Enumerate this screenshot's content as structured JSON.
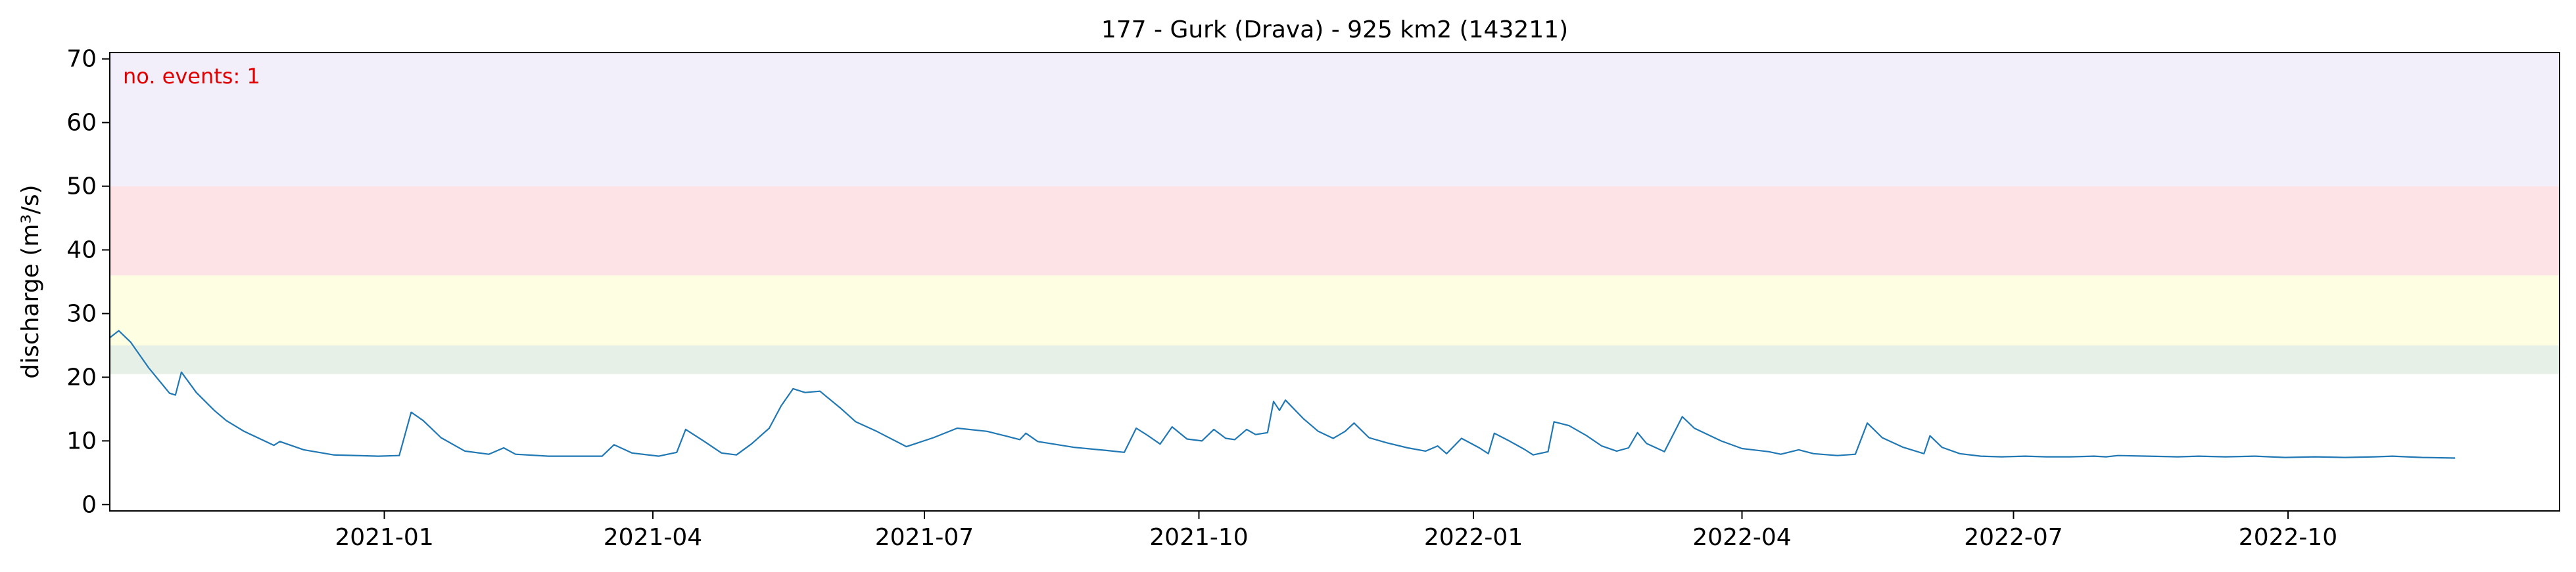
{
  "chart_data": {
    "type": "line",
    "title": "177 - Gurk (Drava) - 925 km2 (143211)",
    "xlabel": "",
    "ylabel": "discharge (m³/s)",
    "xlim": [
      "2020-10-01",
      "2022-12-31"
    ],
    "ylim": [
      -1,
      71
    ],
    "y_ticks": [
      0,
      10,
      20,
      30,
      40,
      50,
      60,
      70
    ],
    "x_ticks": [
      "2021-01",
      "2021-04",
      "2021-07",
      "2021-10",
      "2022-01",
      "2022-04",
      "2022-07",
      "2022-10"
    ],
    "grid": false,
    "bands": [
      {
        "from": 20.5,
        "to": 25,
        "color": "#e6f0e6"
      },
      {
        "from": 25,
        "to": 36,
        "color": "#feffe2"
      },
      {
        "from": 36,
        "to": 50,
        "color": "#fee3e6"
      },
      {
        "from": 50,
        "to": 71,
        "color": "#f2eefa"
      }
    ],
    "series": [
      {
        "color": "#1f77b4",
        "points": [
          [
            "2020-10-01",
            26.2
          ],
          [
            "2020-10-04",
            27.3
          ],
          [
            "2020-10-08",
            25.5
          ],
          [
            "2020-10-14",
            21.5
          ],
          [
            "2020-10-21",
            17.5
          ],
          [
            "2020-10-23",
            17.2
          ],
          [
            "2020-10-25",
            20.8
          ],
          [
            "2020-10-30",
            17.6
          ],
          [
            "2020-11-05",
            14.8
          ],
          [
            "2020-11-09",
            13.2
          ],
          [
            "2020-11-15",
            11.5
          ],
          [
            "2020-11-25",
            9.3
          ],
          [
            "2020-11-27",
            9.9
          ],
          [
            "2020-12-05",
            8.6
          ],
          [
            "2020-12-15",
            7.8
          ],
          [
            "2020-12-30",
            7.6
          ],
          [
            "2021-01-06",
            7.7
          ],
          [
            "2021-01-10",
            14.5
          ],
          [
            "2021-01-14",
            13.2
          ],
          [
            "2021-01-20",
            10.5
          ],
          [
            "2021-01-28",
            8.4
          ],
          [
            "2021-02-05",
            7.9
          ],
          [
            "2021-02-10",
            8.9
          ],
          [
            "2021-02-14",
            7.9
          ],
          [
            "2021-02-25",
            7.6
          ],
          [
            "2021-03-15",
            7.6
          ],
          [
            "2021-03-19",
            9.4
          ],
          [
            "2021-03-25",
            8.1
          ],
          [
            "2021-04-03",
            7.6
          ],
          [
            "2021-04-09",
            8.2
          ],
          [
            "2021-04-12",
            11.8
          ],
          [
            "2021-04-18",
            10.0
          ],
          [
            "2021-04-24",
            8.1
          ],
          [
            "2021-04-29",
            7.8
          ],
          [
            "2021-05-04",
            9.5
          ],
          [
            "2021-05-10",
            12.0
          ],
          [
            "2021-05-14",
            15.5
          ],
          [
            "2021-05-18",
            18.2
          ],
          [
            "2021-05-22",
            17.6
          ],
          [
            "2021-05-27",
            17.8
          ],
          [
            "2021-06-03",
            15.1
          ],
          [
            "2021-06-08",
            13.0
          ],
          [
            "2021-06-15",
            11.5
          ],
          [
            "2021-06-25",
            9.1
          ],
          [
            "2021-07-04",
            10.5
          ],
          [
            "2021-07-12",
            12.0
          ],
          [
            "2021-07-22",
            11.5
          ],
          [
            "2021-07-28",
            10.8
          ],
          [
            "2021-08-02",
            10.2
          ],
          [
            "2021-08-04",
            11.2
          ],
          [
            "2021-08-08",
            9.9
          ],
          [
            "2021-08-20",
            9.0
          ],
          [
            "2021-08-31",
            8.5
          ],
          [
            "2021-09-06",
            8.2
          ],
          [
            "2021-09-10",
            12.0
          ],
          [
            "2021-09-14",
            10.8
          ],
          [
            "2021-09-18",
            9.5
          ],
          [
            "2021-09-22",
            12.2
          ],
          [
            "2021-09-27",
            10.3
          ],
          [
            "2021-10-02",
            10.0
          ],
          [
            "2021-10-06",
            11.8
          ],
          [
            "2021-10-10",
            10.4
          ],
          [
            "2021-10-13",
            10.2
          ],
          [
            "2021-10-17",
            11.8
          ],
          [
            "2021-10-20",
            11.0
          ],
          [
            "2021-10-24",
            11.3
          ],
          [
            "2021-10-26",
            16.2
          ],
          [
            "2021-10-28",
            14.8
          ],
          [
            "2021-10-30",
            16.4
          ],
          [
            "2021-11-05",
            13.5
          ],
          [
            "2021-11-10",
            11.5
          ],
          [
            "2021-11-15",
            10.4
          ],
          [
            "2021-11-19",
            11.5
          ],
          [
            "2021-11-22",
            12.8
          ],
          [
            "2021-11-27",
            10.5
          ],
          [
            "2021-12-03",
            9.7
          ],
          [
            "2021-12-10",
            8.9
          ],
          [
            "2021-12-16",
            8.4
          ],
          [
            "2021-12-20",
            9.2
          ],
          [
            "2021-12-23",
            8.0
          ],
          [
            "2021-12-28",
            10.4
          ],
          [
            "2022-01-03",
            8.9
          ],
          [
            "2022-01-06",
            8.0
          ],
          [
            "2022-01-08",
            11.2
          ],
          [
            "2022-01-13",
            10.0
          ],
          [
            "2022-01-18",
            8.7
          ],
          [
            "2022-01-21",
            7.8
          ],
          [
            "2022-01-26",
            8.3
          ],
          [
            "2022-01-28",
            13.0
          ],
          [
            "2022-02-02",
            12.4
          ],
          [
            "2022-02-08",
            10.8
          ],
          [
            "2022-02-13",
            9.2
          ],
          [
            "2022-02-18",
            8.4
          ],
          [
            "2022-02-22",
            8.9
          ],
          [
            "2022-02-25",
            11.3
          ],
          [
            "2022-02-28",
            9.6
          ],
          [
            "2022-03-06",
            8.3
          ],
          [
            "2022-03-12",
            13.8
          ],
          [
            "2022-03-16",
            12.0
          ],
          [
            "2022-03-25",
            10.0
          ],
          [
            "2022-04-01",
            8.8
          ],
          [
            "2022-04-10",
            8.3
          ],
          [
            "2022-04-14",
            7.9
          ],
          [
            "2022-04-20",
            8.6
          ],
          [
            "2022-04-25",
            8.0
          ],
          [
            "2022-05-03",
            7.7
          ],
          [
            "2022-05-09",
            7.9
          ],
          [
            "2022-05-13",
            12.8
          ],
          [
            "2022-05-18",
            10.5
          ],
          [
            "2022-05-25",
            9.0
          ],
          [
            "2022-06-01",
            8.0
          ],
          [
            "2022-06-03",
            10.8
          ],
          [
            "2022-06-07",
            9.0
          ],
          [
            "2022-06-13",
            8.0
          ],
          [
            "2022-06-20",
            7.6
          ],
          [
            "2022-06-27",
            7.5
          ],
          [
            "2022-07-05",
            7.6
          ],
          [
            "2022-07-12",
            7.5
          ],
          [
            "2022-07-20",
            7.5
          ],
          [
            "2022-07-28",
            7.6
          ],
          [
            "2022-08-01",
            7.5
          ],
          [
            "2022-08-05",
            7.7
          ],
          [
            "2022-08-15",
            7.6
          ],
          [
            "2022-08-25",
            7.5
          ],
          [
            "2022-09-01",
            7.6
          ],
          [
            "2022-09-10",
            7.5
          ],
          [
            "2022-09-20",
            7.6
          ],
          [
            "2022-09-30",
            7.4
          ],
          [
            "2022-10-10",
            7.5
          ],
          [
            "2022-10-20",
            7.4
          ],
          [
            "2022-10-30",
            7.5
          ],
          [
            "2022-11-05",
            7.6
          ],
          [
            "2022-11-15",
            7.4
          ],
          [
            "2022-11-26",
            7.3
          ]
        ]
      }
    ],
    "annotations": [
      {
        "text": "no. events: 1",
        "color": "#e00000",
        "position": "top-left"
      }
    ]
  }
}
